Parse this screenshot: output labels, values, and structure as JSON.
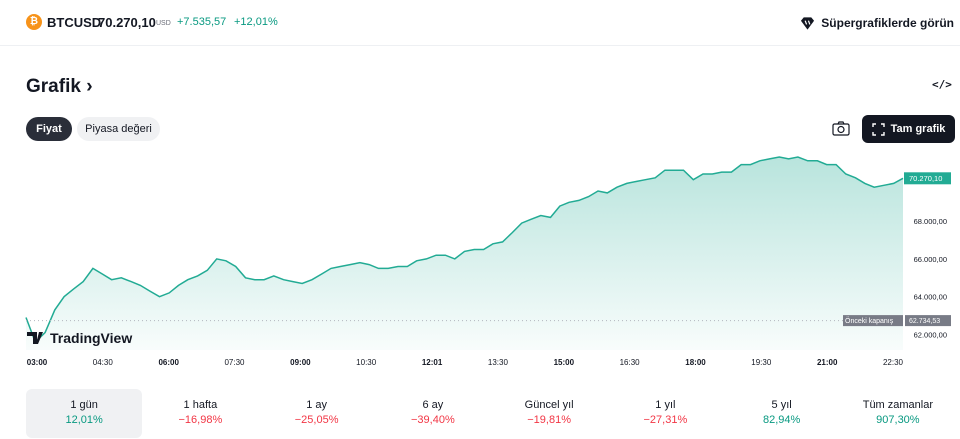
{
  "header": {
    "coin_glyph": "₿",
    "symbol": "BTCUSD",
    "price": "70.270,10",
    "currency": "USD",
    "change": "+7.535,57",
    "change_pct": "+12,01%",
    "supercharts_label": "Süpergrafiklerde görün"
  },
  "section": {
    "title": "Grafik",
    "title_arrow": "›",
    "embed_glyph": "</>"
  },
  "tabs": [
    {
      "label": "Fiyat",
      "active": true
    },
    {
      "label": "Piyasa değeri",
      "active": false
    }
  ],
  "toolbar": {
    "fullscreen_label": "Tam grafik"
  },
  "colors": {
    "up": "#089981",
    "down": "#f23645",
    "bitcoin": "#f7931a",
    "line": "#22ab94"
  },
  "chart_data": {
    "type": "area",
    "watermark": "TradingView",
    "x_tick_labels": [
      "03:00",
      "04:30",
      "06:00",
      "07:30",
      "09:00",
      "10:30",
      "12:01",
      "13:30",
      "15:00",
      "16:30",
      "18:00",
      "19:30",
      "21:00",
      "22:30"
    ],
    "x_tick_bold": [
      true,
      false,
      true,
      false,
      true,
      false,
      true,
      false,
      true,
      false,
      true,
      false,
      true,
      false
    ],
    "x_hours": [
      0.0,
      0.22,
      0.45,
      0.68,
      0.9,
      1.12,
      1.35,
      1.58,
      1.8,
      2.02,
      2.25,
      2.48,
      2.7,
      2.92,
      3.15,
      3.38,
      3.6,
      3.82,
      4.05,
      4.28,
      4.5,
      4.72,
      4.95,
      5.18,
      5.4,
      5.62,
      5.85,
      6.08,
      6.3,
      6.52,
      6.75,
      6.98,
      7.2,
      7.42,
      7.65,
      7.88,
      8.1,
      8.32,
      8.55,
      8.78,
      9.0,
      9.22,
      9.45,
      9.68,
      9.9,
      10.12,
      10.35,
      10.58,
      10.8,
      11.02,
      11.25,
      11.48,
      11.7,
      11.92,
      12.15,
      12.38,
      12.6,
      12.82,
      13.05,
      13.28,
      13.5,
      13.72,
      13.95,
      14.18,
      14.4,
      14.62,
      14.85,
      15.08,
      15.3,
      15.52,
      15.75,
      15.98,
      16.2,
      16.42,
      16.65,
      16.88,
      17.1,
      17.32,
      17.55,
      17.78,
      18.0,
      18.22,
      18.45,
      18.68,
      18.9,
      19.12,
      19.35,
      19.58,
      19.8,
      20.02,
      20.25,
      20.48,
      20.7
    ],
    "y_values": [
      62900,
      61600,
      62100,
      63300,
      64000,
      64400,
      64800,
      65500,
      65200,
      64900,
      65000,
      64800,
      64600,
      64300,
      64000,
      64200,
      64600,
      64900,
      65100,
      65400,
      66000,
      65900,
      65600,
      65000,
      64900,
      64900,
      65100,
      64900,
      64800,
      64700,
      64900,
      65200,
      65500,
      65600,
      65700,
      65800,
      65700,
      65500,
      65500,
      65600,
      65600,
      65900,
      66000,
      66200,
      66200,
      66000,
      66400,
      66500,
      66500,
      66800,
      66900,
      67400,
      67900,
      68100,
      68300,
      68200,
      68800,
      69000,
      69100,
      69300,
      69600,
      69500,
      69800,
      70000,
      70100,
      70200,
      70300,
      70700,
      70700,
      70700,
      70200,
      70500,
      70500,
      70600,
      70600,
      71000,
      71000,
      71200,
      71300,
      71400,
      71300,
      71400,
      71200,
      71200,
      71000,
      71000,
      70500,
      70300,
      70000,
      69800,
      69900,
      70000,
      70270
    ],
    "ylim": [
      61600,
      71400
    ],
    "y_tick_values": [
      62000,
      64000,
      66000,
      68000
    ],
    "y_tick_labels": [
      "62.000,00",
      "64.000,00",
      "66.000,00",
      "68.000,00"
    ],
    "last_value": 70270.1,
    "last_value_label": "70.270,10",
    "prev_close": 62734.53,
    "prev_close_text": "Önceki kapanış",
    "prev_close_label": "62.734,53"
  },
  "periods": [
    {
      "label": "1 gün",
      "value": "12,01%",
      "positive": true,
      "selected": true
    },
    {
      "label": "1 hafta",
      "value": "−16,98%",
      "positive": false,
      "selected": false
    },
    {
      "label": "1 ay",
      "value": "−25,05%",
      "positive": false,
      "selected": false
    },
    {
      "label": "6 ay",
      "value": "−39,40%",
      "positive": false,
      "selected": false
    },
    {
      "label": "Güncel yıl",
      "value": "−19,81%",
      "positive": false,
      "selected": false
    },
    {
      "label": "1 yıl",
      "value": "−27,31%",
      "positive": false,
      "selected": false
    },
    {
      "label": "5 yıl",
      "value": "82,94%",
      "positive": true,
      "selected": false
    },
    {
      "label": "Tüm zamanlar",
      "value": "907,30%",
      "positive": true,
      "selected": false
    }
  ]
}
